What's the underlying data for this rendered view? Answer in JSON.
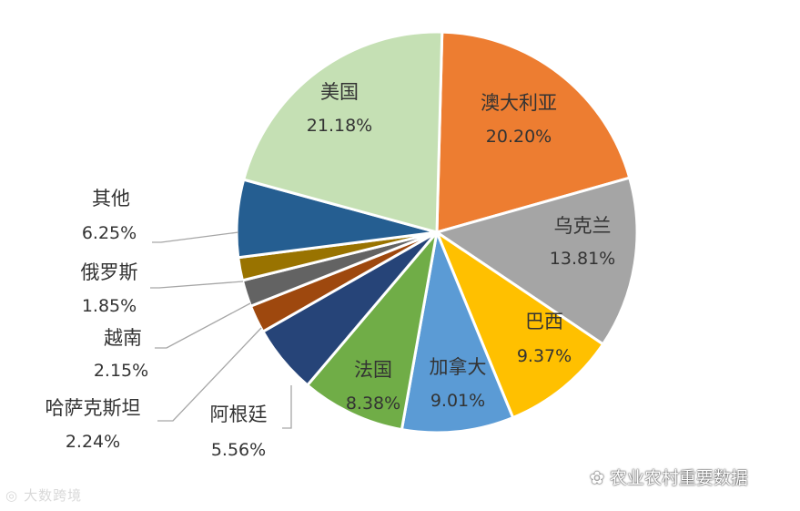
{
  "chart_data": {
    "type": "pie",
    "title": "",
    "slices": [
      {
        "name": "澳大利亚",
        "label": "20.20%",
        "value": 20.2,
        "color": "#ED7D31"
      },
      {
        "name": "乌克兰",
        "label": "13.81%",
        "value": 13.81,
        "color": "#A5A5A5"
      },
      {
        "name": "巴西",
        "label": "9.37%",
        "value": 9.37,
        "color": "#FFC000"
      },
      {
        "name": "加拿大",
        "label": "9.01%",
        "value": 9.01,
        "color": "#5B9BD5"
      },
      {
        "name": "法国",
        "label": "8.38%",
        "value": 8.38,
        "color": "#70AD47"
      },
      {
        "name": "阿根廷",
        "label": "5.56%",
        "value": 5.56,
        "color": "#264478"
      },
      {
        "name": "哈萨克斯坦",
        "label": "2.24%",
        "value": 2.24,
        "color": "#9E480E"
      },
      {
        "name": "越南",
        "label": "2.15%",
        "value": 2.15,
        "color": "#636363"
      },
      {
        "name": "俄罗斯",
        "label": "1.85%",
        "value": 1.85,
        "color": "#997300"
      },
      {
        "name": "其他",
        "label": "6.25%",
        "value": 6.25,
        "color": "#255E91"
      },
      {
        "name": "美国",
        "label": "21.18%",
        "value": 21.18,
        "color": "#C5E0B4"
      }
    ]
  },
  "watermarks": {
    "left": "大数跨境",
    "right": "农业农村重要数据"
  }
}
